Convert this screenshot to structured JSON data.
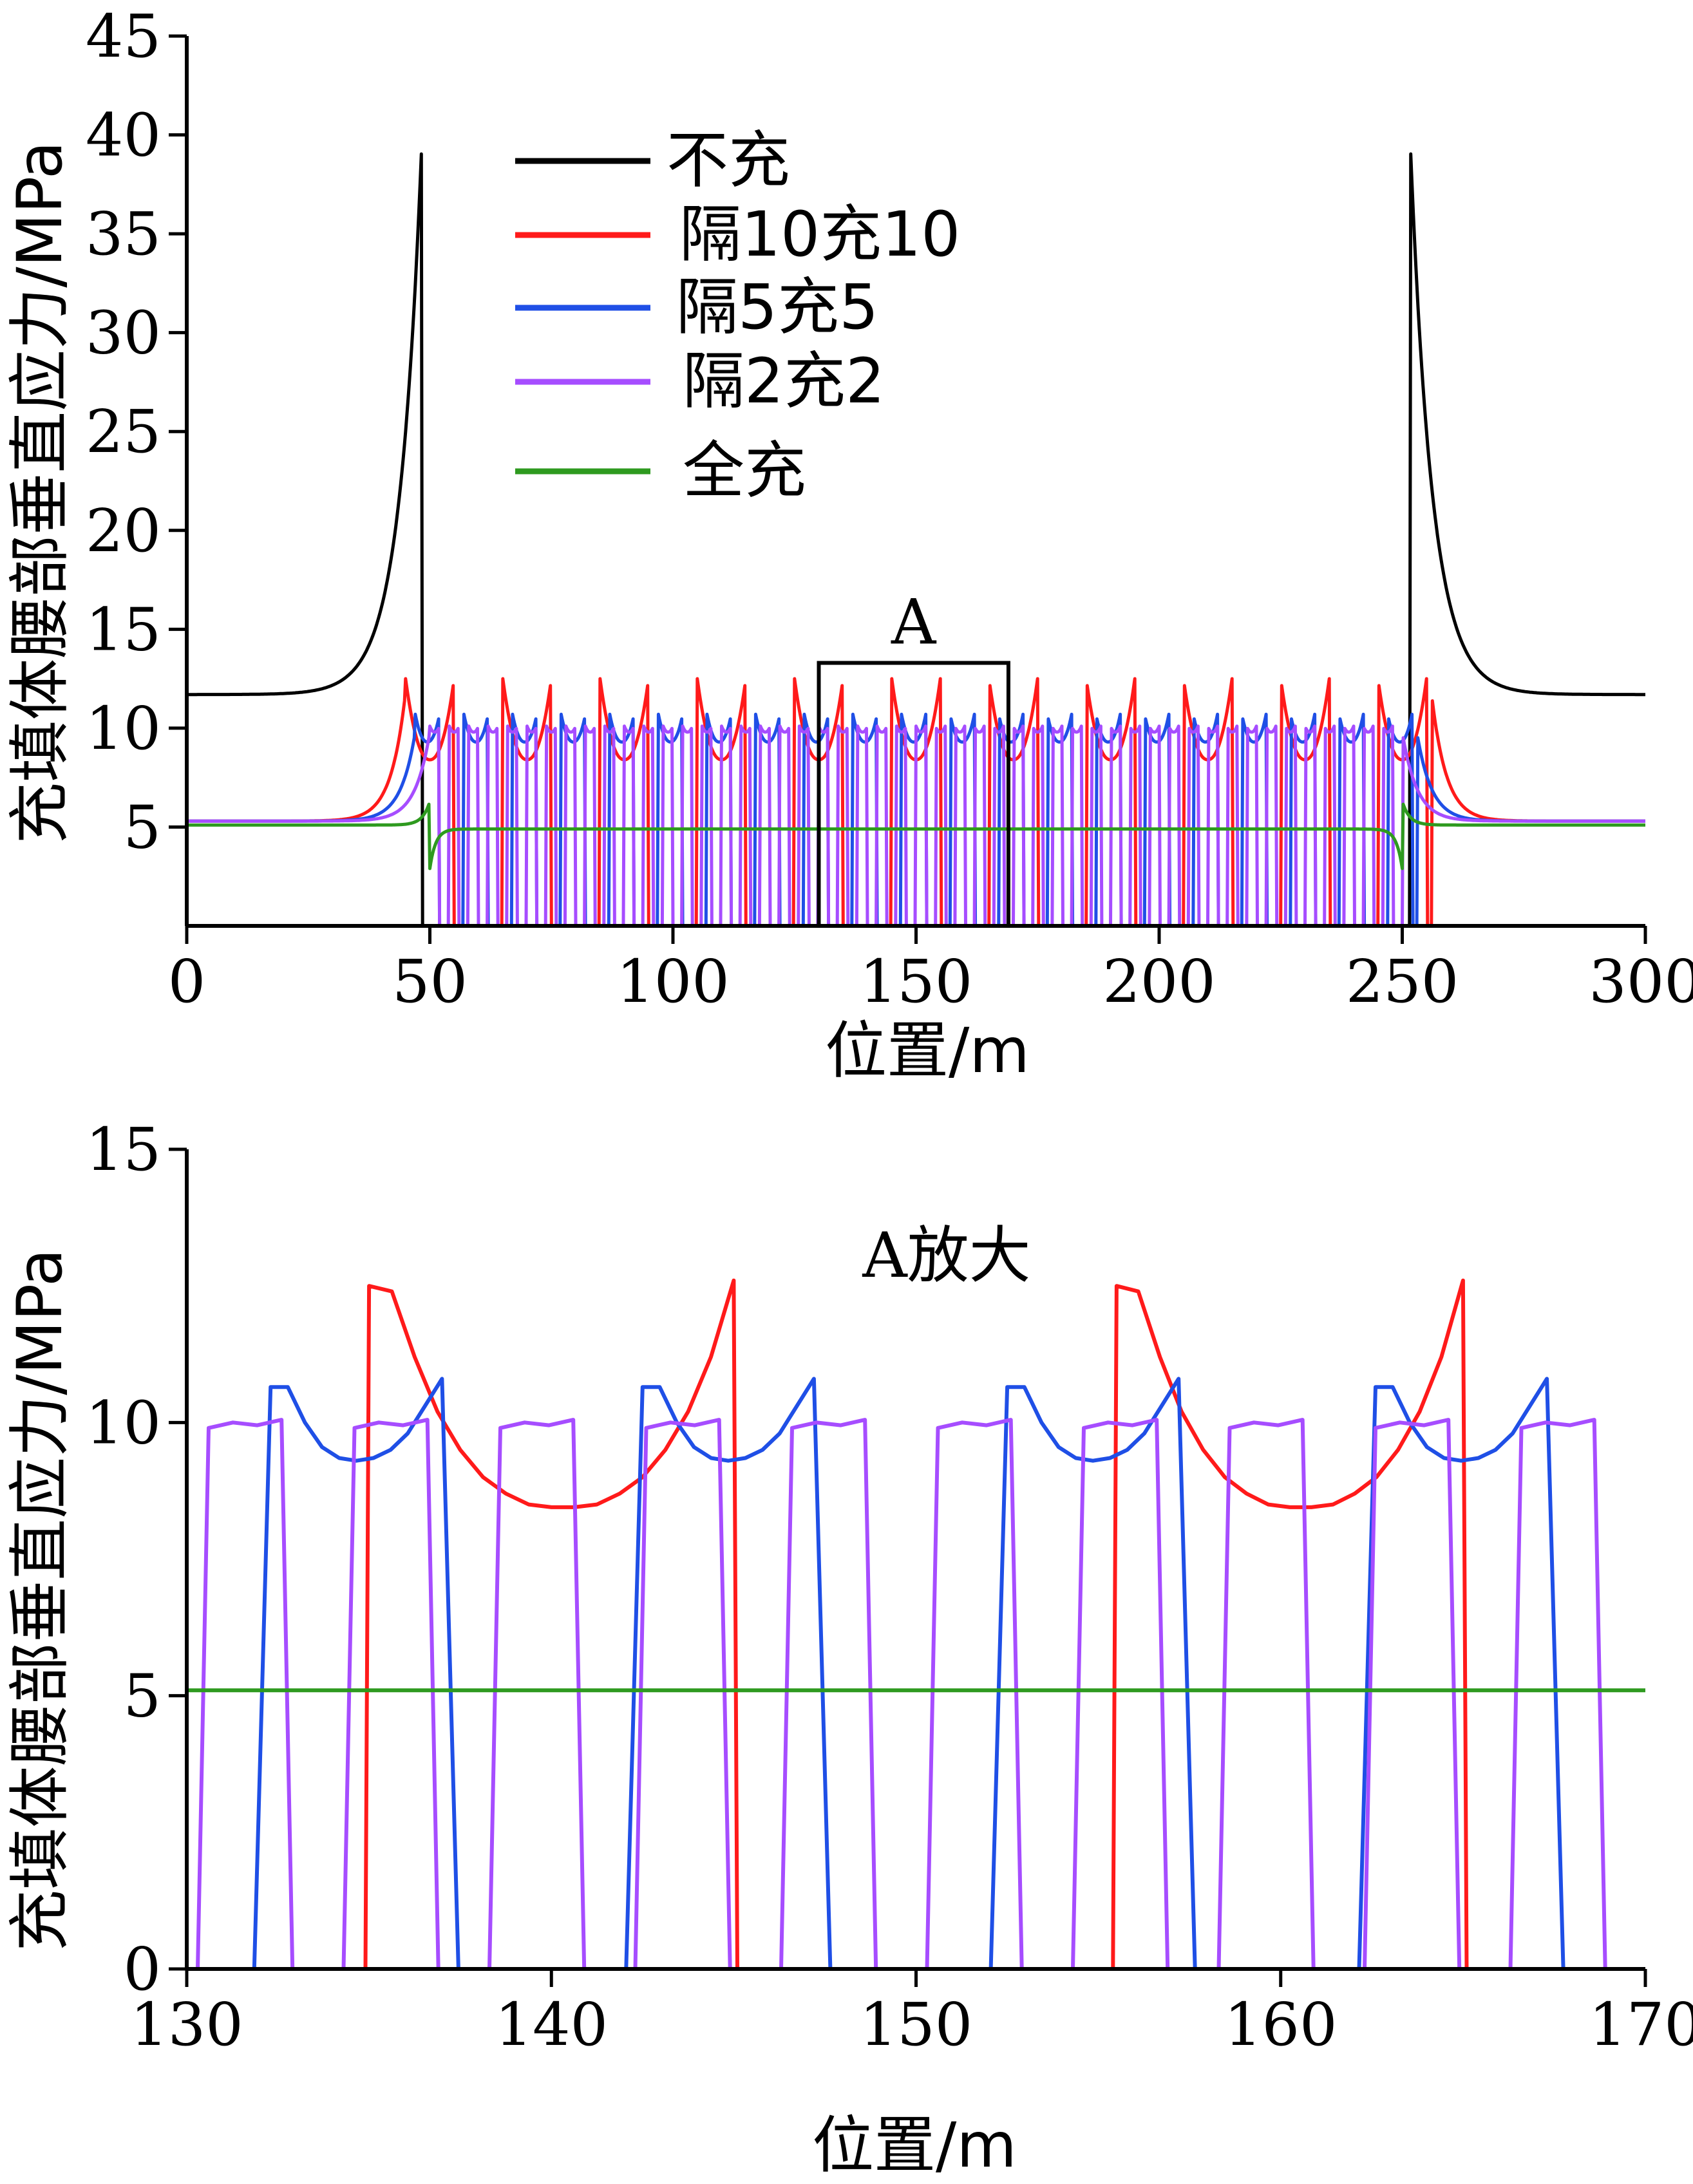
{
  "colors": {
    "unfilled": "#000000",
    "g10": "#ff1a1a",
    "g5": "#1f4fe6",
    "g2": "#a64dff",
    "full": "#2e9a1f"
  },
  "chart_data": [
    {
      "type": "line",
      "title": "",
      "xlabel": "位置/m",
      "ylabel": "充填体腰部垂直应力/MPa",
      "xlim": [
        0,
        300
      ],
      "ylim": [
        0,
        45
      ],
      "xticks": [
        "0",
        "50",
        "100",
        "150",
        "200",
        "250",
        "300"
      ],
      "xtick_values": [
        0,
        50,
        100,
        150,
        200,
        250,
        300
      ],
      "yticks": [
        "5",
        "10",
        "15",
        "20",
        "25",
        "30",
        "35",
        "40",
        "45"
      ],
      "ytick_values": [
        5,
        10,
        15,
        20,
        25,
        30,
        35,
        40,
        45
      ],
      "legend_position": "upper-center",
      "series": [
        {
          "name": "不充",
          "key": "unfilled",
          "model": "unfilled",
          "params": {
            "base": 11.7,
            "peak": 40.6,
            "left": 48.5,
            "right": 251.5
          }
        },
        {
          "name": "隔10充10",
          "key": "g10",
          "model": "pattern",
          "params": {
            "start": 45,
            "end": 256,
            "period": 20,
            "width": 10,
            "low": 8.4,
            "high": 12.5,
            "edge": 11.8,
            "outside": 5.3
          }
        },
        {
          "name": "隔5充5",
          "key": "g5",
          "model": "pattern",
          "params": {
            "start": 47,
            "end": 253,
            "period": 10,
            "width": 5,
            "low": 9.3,
            "high": 10.7,
            "edge": 9.8,
            "outside": 5.3
          }
        },
        {
          "name": "隔2充2",
          "key": "g2",
          "model": "pattern",
          "params": {
            "start": 50,
            "end": 250,
            "period": 4,
            "width": 2,
            "low": 9.8,
            "high": 10.1,
            "edge": 9.8,
            "outside": 5.3
          }
        },
        {
          "name": "全充",
          "key": "full",
          "model": "full",
          "params": {
            "inside": 4.9,
            "outside": 5.1,
            "left": 50,
            "right": 250
          }
        }
      ],
      "annotations": [
        {
          "text": "A",
          "box_x": [
            130,
            169
          ],
          "box_y": [
            0,
            13.3
          ]
        }
      ]
    },
    {
      "type": "line",
      "title": "A放大",
      "xlabel": "位置/m",
      "ylabel": "充填体腰部垂直应力/MPa",
      "xlim": [
        130,
        170
      ],
      "ylim": [
        0,
        15
      ],
      "xticks": [
        "130",
        "140",
        "150",
        "160",
        "170"
      ],
      "xtick_values": [
        130,
        140,
        150,
        160,
        170
      ],
      "yticks": [
        "0",
        "5",
        "10",
        "15"
      ],
      "ytick_values": [
        0,
        5,
        10,
        15
      ],
      "series": [
        {
          "key": "unfilled",
          "value": 0
        },
        {
          "key": "g10",
          "segments": [
            [
              135,
              145
            ],
            [
              155.5,
              165
            ]
          ],
          "values": [
            12.5,
            12.4,
            11.2,
            10.2,
            9.5,
            9.0,
            8.7,
            8.5,
            8.45,
            8.45,
            8.5,
            8.7,
            9.0,
            9.5,
            10.2,
            11.2,
            12.6
          ]
        },
        {
          "key": "g5",
          "segments": [
            [
              132.3,
              137
            ],
            [
              142.5,
              147.2
            ],
            [
              152.5,
              157.2
            ],
            [
              162.6,
              167.3
            ]
          ],
          "values": [
            10.65,
            10.65,
            10.0,
            9.55,
            9.35,
            9.3,
            9.35,
            9.5,
            9.8,
            10.3,
            10.8
          ]
        },
        {
          "key": "g2",
          "segments": [
            [
              130.6,
              132.6
            ],
            [
              134.6,
              136.6
            ],
            [
              138.6,
              140.6
            ],
            [
              142.6,
              144.6
            ],
            [
              146.6,
              148.6
            ],
            [
              150.6,
              152.6
            ],
            [
              154.6,
              156.6
            ],
            [
              158.6,
              160.6
            ],
            [
              162.6,
              164.6
            ],
            [
              166.6,
              168.6
            ]
          ],
          "values": [
            9.9,
            10.0,
            9.95,
            10.05
          ]
        },
        {
          "key": "full",
          "value": 5.1
        }
      ]
    }
  ]
}
